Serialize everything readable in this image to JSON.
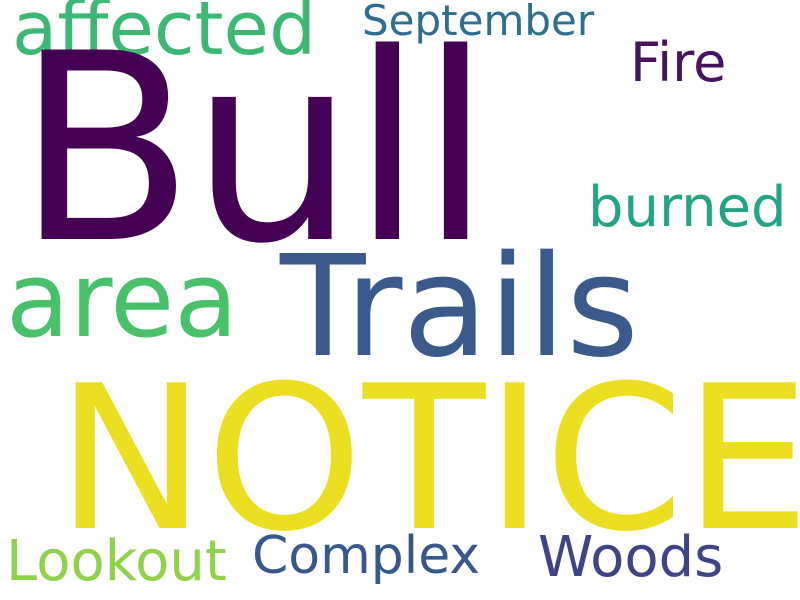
{
  "words": {
    "bull": "Bull",
    "notice": "NOTICE",
    "trails": "Trails",
    "area": "area",
    "affected": "affected",
    "september": "September",
    "fire": "Fire",
    "burned": "burned",
    "lookout": "Lookout",
    "complex": "Complex",
    "woods": "Woods"
  },
  "colors": {
    "background": "#ffffff",
    "bull": "#440154",
    "notice": "#ecdf22",
    "trails": "#3b5a8c",
    "area": "#49c16b",
    "affected": "#3db872",
    "september": "#2f6e8f",
    "fire": "#47135f",
    "burned": "#23a485",
    "lookout": "#8fd34a",
    "complex": "#37588d",
    "woods": "#3f4487"
  }
}
